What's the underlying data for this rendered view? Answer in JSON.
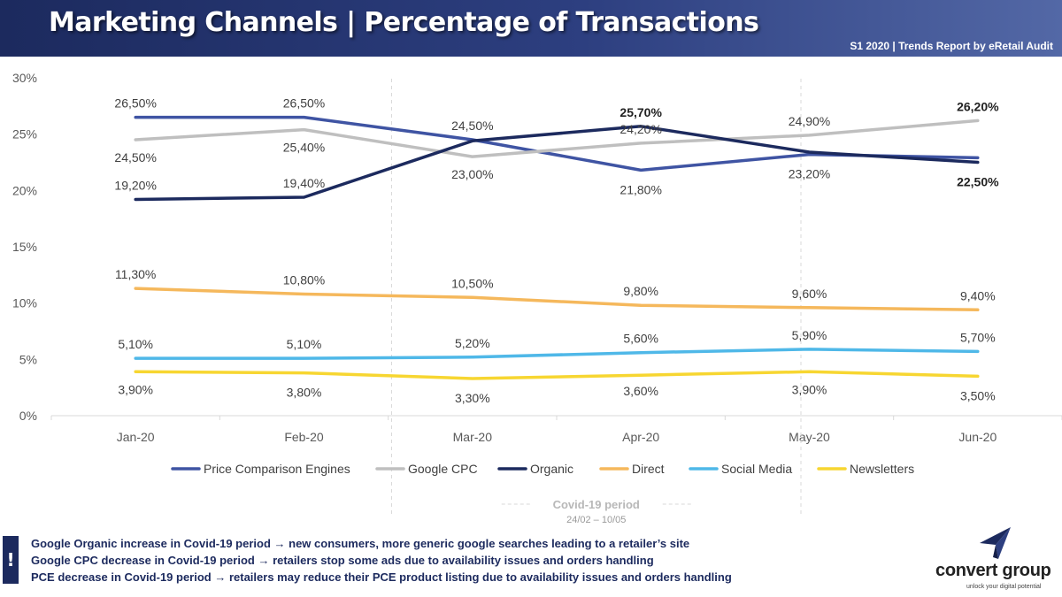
{
  "header": {
    "title": "Marketing Channels | Percentage of Transactions",
    "subtitle": "S1 2020 | Trends Report by eRetail Audit"
  },
  "chart_data": {
    "type": "line",
    "title": "Marketing Channels | Percentage of Transactions",
    "xlabel": "",
    "ylabel": "",
    "categories": [
      "Jan-20",
      "Feb-20",
      "Mar-20",
      "Apr-20",
      "May-20",
      "Jun-20"
    ],
    "y_ticks": [
      "0%",
      "5%",
      "10%",
      "15%",
      "20%",
      "25%",
      "30%"
    ],
    "ylim": [
      0,
      30
    ],
    "grid": false,
    "legend_position": "bottom",
    "series": [
      {
        "name": "Price Comparison Engines",
        "color": "#3f54a3",
        "values": [
          26.5,
          26.5,
          24.5,
          21.8,
          23.2,
          22.9
        ],
        "labels": [
          "26,50%",
          "26,50%",
          "24,50%",
          "21,80%",
          "23,20%",
          ""
        ]
      },
      {
        "name": "Google CPC",
        "color": "#bfbfbf",
        "values": [
          24.5,
          25.4,
          23.0,
          24.2,
          24.9,
          26.2
        ],
        "labels": [
          "24,50%",
          "25,40%",
          "23,00%",
          "24,20%",
          "24,90%",
          "26,20%"
        ]
      },
      {
        "name": "Organic",
        "color": "#1c2a5e",
        "values": [
          19.2,
          19.4,
          24.4,
          25.7,
          23.4,
          22.5
        ],
        "labels": [
          "19,20%",
          "19,40%",
          "",
          "25,70%",
          "",
          "22,50%"
        ]
      },
      {
        "name": "Direct",
        "color": "#f5b85c",
        "values": [
          11.3,
          10.8,
          10.5,
          9.8,
          9.6,
          9.4
        ],
        "labels": [
          "11,30%",
          "10,80%",
          "10,50%",
          "9,80%",
          "9,60%",
          "9,40%"
        ]
      },
      {
        "name": "Social Media",
        "color": "#4fb8e8",
        "values": [
          5.1,
          5.1,
          5.2,
          5.6,
          5.9,
          5.7
        ],
        "labels": [
          "5,10%",
          "5,10%",
          "5,20%",
          "5,60%",
          "5,90%",
          "5,70%"
        ]
      },
      {
        "name": "Newsletters",
        "color": "#f7d631",
        "values": [
          3.9,
          3.8,
          3.3,
          3.6,
          3.9,
          3.5
        ],
        "labels": [
          "3,90%",
          "3,80%",
          "3,30%",
          "3,60%",
          "3,90%",
          "3,50%"
        ]
      }
    ],
    "annotations": {
      "covid_label": "Covid-19 period",
      "covid_dates": "24/02 – 10/05"
    }
  },
  "notes": [
    "Google Organic increase in Covid-19 period → new consumers, more generic google searches leading to a retailer’s site",
    "Google CPC decrease in Covid-19 period → retailers stop some ads due to availability issues and orders handling",
    "PCE decrease in Covid-19 period → retailers may reduce their PCE product listing due to availability issues and orders handling"
  ],
  "alert_symbol": "!",
  "logo": {
    "name": "convert group",
    "tagline": "unlock your digital potential",
    "color": "#1c2a5e"
  }
}
